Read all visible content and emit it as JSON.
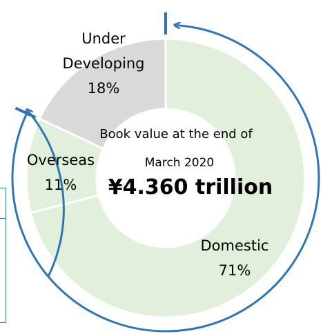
{
  "chart_data": {
    "type": "pie",
    "donut": true,
    "slices": [
      {
        "label": "Domestic",
        "percent_label": "71%",
        "value": 71,
        "color": "#e2efda"
      },
      {
        "label": "Overseas",
        "percent_label": "11%",
        "value": 11,
        "color": "#e2efda"
      },
      {
        "label": "Under\nDeveloping",
        "percent_label": "18%",
        "value": 18,
        "color": "#d9d9d9"
      }
    ],
    "center_text": {
      "line1": "Book value at the end of",
      "line2": "March 2020",
      "total": "¥4.360 trillion"
    },
    "annotation_arrow_color": "#2e75b6"
  },
  "labels": {
    "domestic": [
      "Domestic",
      "71%"
    ],
    "overseas": [
      "Overseas",
      "11%"
    ],
    "under": [
      "Under",
      "Developing",
      "18%"
    ]
  }
}
